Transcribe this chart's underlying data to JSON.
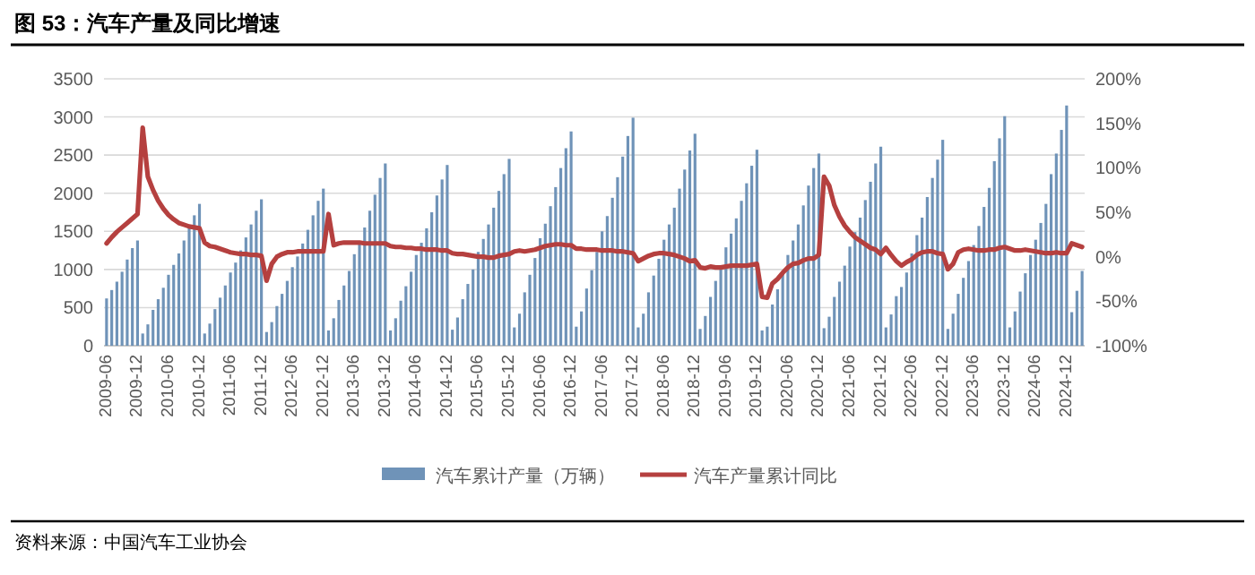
{
  "chart_data": {
    "type": "bar",
    "title": "图 53：汽车产量及同比增速",
    "categories": [
      "2009-06",
      null,
      null,
      null,
      null,
      null,
      "2009-12",
      null,
      null,
      null,
      null,
      null,
      "2010-06",
      null,
      null,
      null,
      null,
      null,
      "2010-12",
      null,
      null,
      null,
      null,
      null,
      "2011-06",
      null,
      null,
      null,
      null,
      null,
      "2011-12",
      null,
      null,
      null,
      null,
      null,
      "2012-06",
      null,
      null,
      null,
      null,
      null,
      "2012-12",
      null,
      null,
      null,
      null,
      null,
      "2013-06",
      null,
      null,
      null,
      null,
      null,
      "2013-12",
      null,
      null,
      null,
      null,
      null,
      "2014-06",
      null,
      null,
      null,
      null,
      null,
      "2014-12",
      null,
      null,
      null,
      null,
      null,
      "2015-06",
      null,
      null,
      null,
      null,
      null,
      "2015-12",
      null,
      null,
      null,
      null,
      null,
      "2016-06",
      null,
      null,
      null,
      null,
      null,
      "2016-12",
      null,
      null,
      null,
      null,
      null,
      "2017-06",
      null,
      null,
      null,
      null,
      null,
      "2017-12",
      null,
      null,
      null,
      null,
      null,
      "2018-06",
      null,
      null,
      null,
      null,
      null,
      "2018-12",
      null,
      null,
      null,
      null,
      null,
      "2019-06",
      null,
      null,
      null,
      null,
      null,
      "2019-12",
      null,
      null,
      null,
      null,
      null,
      "2020-06",
      null,
      null,
      null,
      null,
      null,
      "2020-12",
      null,
      null,
      null,
      null,
      null,
      "2021-06",
      null,
      null,
      null,
      null,
      null,
      "2021-12",
      null,
      null,
      null,
      null,
      null,
      "2022-06",
      null,
      null,
      null,
      null,
      null,
      "2022-12",
      null,
      null,
      null,
      null,
      null,
      "2023-06",
      null,
      null,
      null,
      null,
      null,
      "2023-12",
      null,
      null,
      null,
      null,
      null,
      "2024-06",
      null,
      null,
      null,
      null,
      null,
      "2024-12",
      null,
      null,
      null
    ],
    "series": [
      {
        "name": "汽车累计产量（万辆）",
        "color": "#6f93b8",
        "values": [
          620,
          730,
          840,
          970,
          1130,
          1280,
          1380,
          160,
          280,
          470,
          610,
          760,
          930,
          1060,
          1210,
          1380,
          1540,
          1710,
          1860,
          160,
          290,
          480,
          630,
          790,
          960,
          1090,
          1250,
          1420,
          1590,
          1770,
          1920,
          180,
          310,
          520,
          680,
          850,
          1030,
          1170,
          1340,
          1520,
          1710,
          1900,
          2060,
          200,
          360,
          600,
          790,
          980,
          1200,
          1360,
          1550,
          1770,
          1980,
          2200,
          2390,
          200,
          360,
          590,
          780,
          970,
          1190,
          1350,
          1540,
          1750,
          1970,
          2180,
          2370,
          210,
          370,
          610,
          810,
          1000,
          1230,
          1400,
          1590,
          1810,
          2030,
          2250,
          2450,
          240,
          420,
          700,
          930,
          1150,
          1410,
          1600,
          1830,
          2080,
          2330,
          2590,
          2810,
          250,
          450,
          750,
          990,
          1230,
          1500,
          1700,
          1940,
          2210,
          2480,
          2750,
          2990,
          240,
          420,
          700,
          920,
          1140,
          1390,
          1590,
          1810,
          2060,
          2310,
          2560,
          2780,
          220,
          390,
          640,
          850,
          1050,
          1290,
          1470,
          1670,
          1900,
          2130,
          2360,
          2570,
          200,
          250,
          540,
          740,
          960,
          1190,
          1380,
          1590,
          1840,
          2100,
          2330,
          2520,
          230,
          380,
          640,
          840,
          1050,
          1300,
          1490,
          1680,
          1910,
          2150,
          2390,
          2610,
          240,
          410,
          650,
          770,
          960,
          1210,
          1450,
          1680,
          1950,
          2200,
          2440,
          2700,
          220,
          420,
          680,
          890,
          1110,
          1320,
          1570,
          1820,
          2070,
          2420,
          2720,
          3010,
          240,
          450,
          710,
          950,
          1190,
          1390,
          1610,
          1860,
          2250,
          2520,
          2830,
          3150,
          440,
          720,
          980
        ]
      },
      {
        "name": "汽车产量累计同比",
        "type": "line",
        "axis": "y2",
        "color": "#b5403f",
        "values": [
          15,
          22,
          28,
          33,
          38,
          43,
          48,
          145,
          90,
          75,
          63,
          54,
          47,
          42,
          38,
          36,
          34,
          33,
          32,
          16,
          12,
          11,
          9,
          7,
          5,
          4,
          3,
          3,
          2,
          2,
          1,
          -27,
          -8,
          0,
          3,
          5,
          5,
          6,
          6,
          6,
          6,
          6,
          6,
          48,
          13,
          15,
          16,
          16,
          16,
          16,
          15,
          15,
          15,
          15,
          15,
          12,
          11,
          11,
          10,
          10,
          9,
          9,
          8,
          8,
          8,
          7,
          7,
          4,
          3,
          3,
          2,
          1,
          0,
          0,
          -1,
          -1,
          1,
          2,
          3,
          6,
          7,
          6,
          7,
          8,
          10,
          12,
          13,
          14,
          14,
          13,
          13,
          9,
          9,
          8,
          8,
          8,
          7,
          7,
          7,
          6,
          6,
          5,
          4,
          -5,
          -2,
          1,
          3,
          4,
          4,
          3,
          2,
          0,
          -2,
          -5,
          -4,
          -12,
          -13,
          -11,
          -12,
          -12,
          -11,
          -10,
          -10,
          -10,
          -10,
          -9,
          -8,
          -45,
          -46,
          -30,
          -25,
          -18,
          -12,
          -8,
          -7,
          -4,
          -2,
          -2,
          2,
          90,
          80,
          58,
          45,
          35,
          28,
          22,
          18,
          14,
          10,
          8,
          3,
          10,
          2,
          -5,
          -10,
          -6,
          -3,
          2,
          5,
          6,
          6,
          4,
          3,
          -14,
          -8,
          5,
          8,
          9,
          8,
          7,
          7,
          8,
          8,
          10,
          11,
          9,
          7,
          7,
          8,
          7,
          6,
          5,
          4,
          4,
          5,
          4,
          4,
          15,
          13,
          11
        ]
      }
    ],
    "ylim": [
      0,
      3500
    ],
    "yticks": [
      0,
      500,
      1000,
      1500,
      2000,
      2500,
      3000,
      3500
    ],
    "y2lim": [
      -100,
      200
    ],
    "y2ticks": [
      {
        "value": -100,
        "label": "-100%"
      },
      {
        "value": -50,
        "label": "-50%"
      },
      {
        "value": 0,
        "label": "0%"
      },
      {
        "value": 50,
        "label": "50%"
      },
      {
        "value": 100,
        "label": "100%"
      },
      {
        "value": 150,
        "label": "150%"
      },
      {
        "value": 200,
        "label": "200%"
      }
    ],
    "grid": "y",
    "legend": "bottom",
    "annotations": [
      "资料来源：中国汽车工业协会"
    ]
  }
}
